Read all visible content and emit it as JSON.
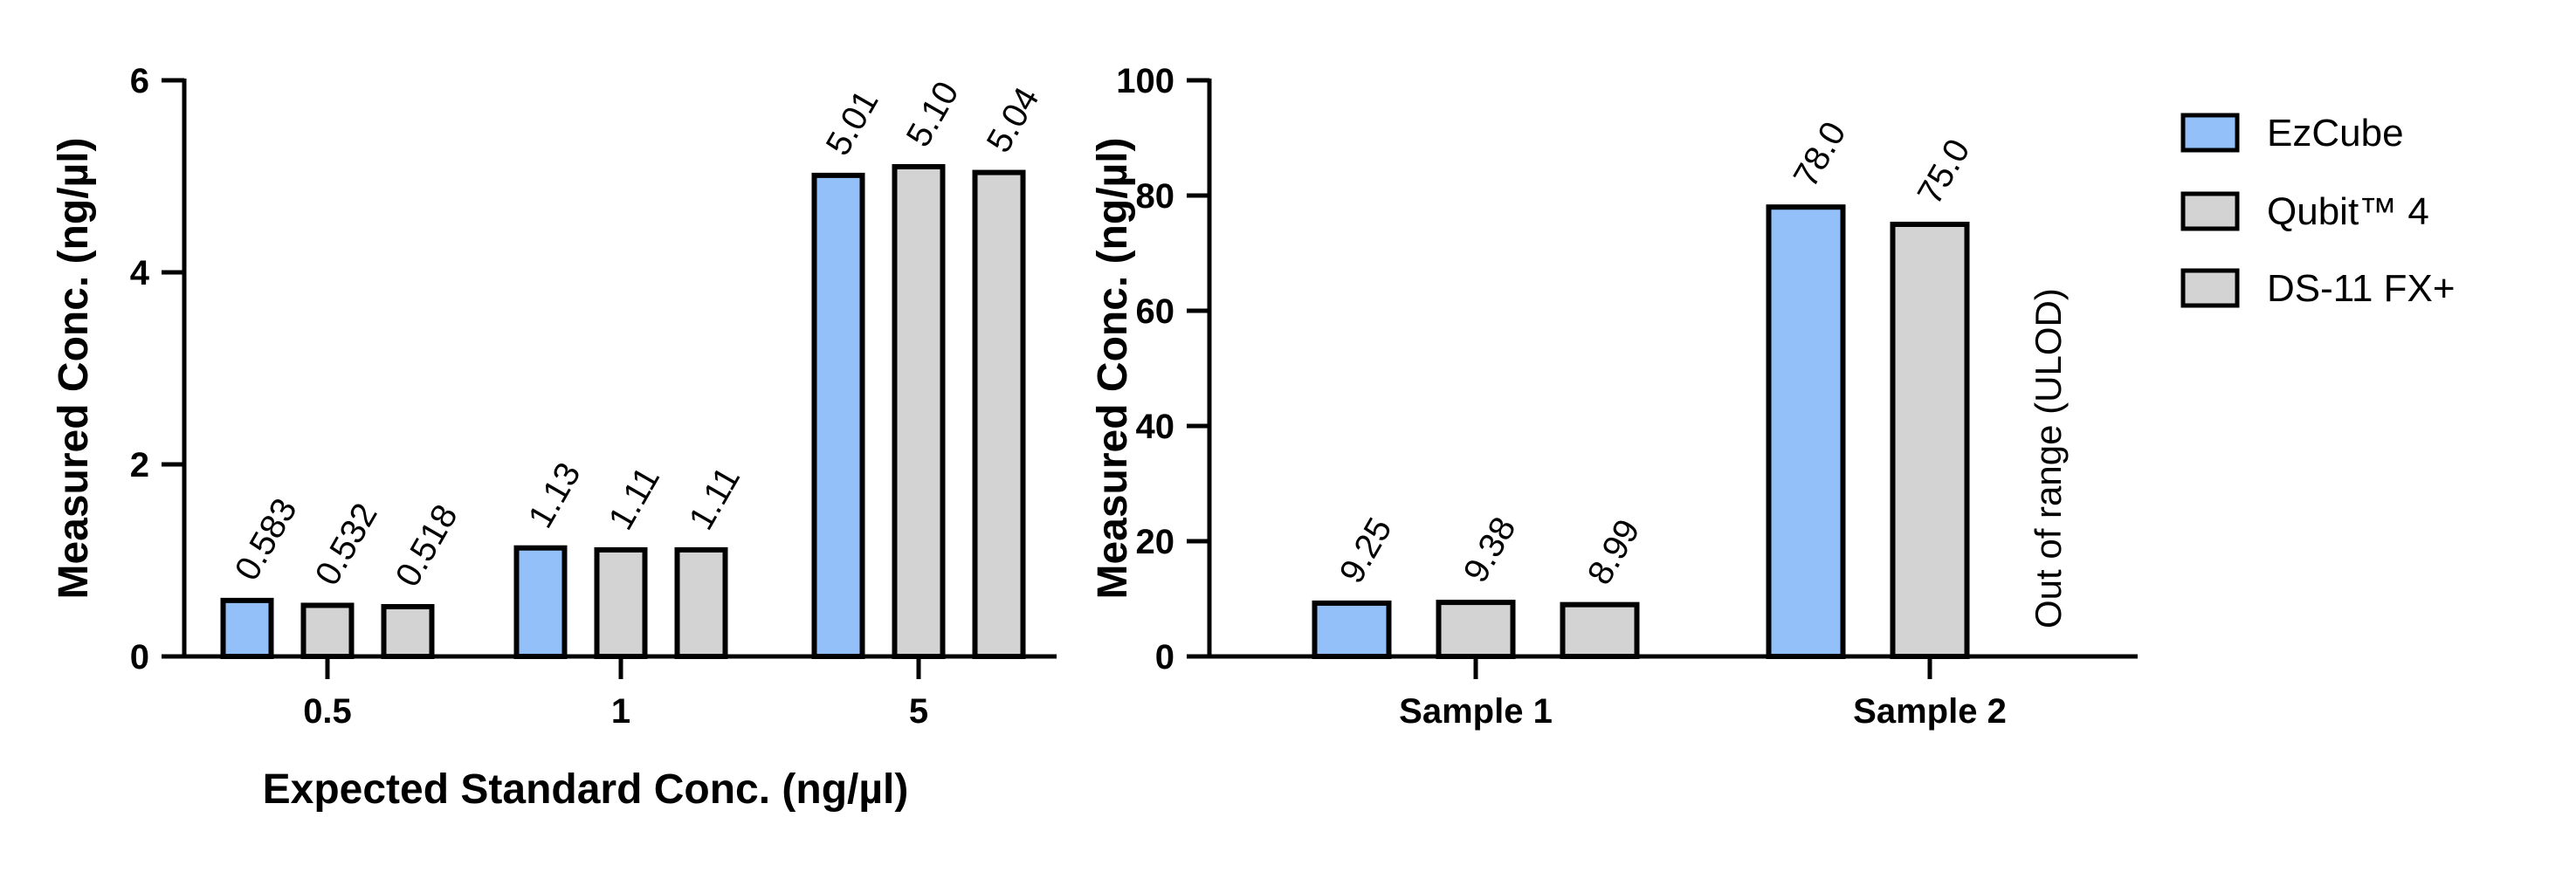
{
  "chart_data": [
    {
      "type": "bar",
      "xlabel": "Expected Standard Conc. (ng/µl)",
      "ylabel": "Measured Conc. (ng/µl)",
      "ylim": [
        0,
        6
      ],
      "yticks": [
        0,
        2,
        4,
        6
      ],
      "categories": [
        "0.5",
        "1",
        "5"
      ],
      "series": [
        {
          "name": "EzCube",
          "values": [
            0.583,
            1.13,
            5.01
          ],
          "labels": [
            "0.583",
            "1.13",
            "5.01"
          ]
        },
        {
          "name": "Qubit™ 4",
          "values": [
            0.532,
            1.11,
            5.1
          ],
          "labels": [
            "0.532",
            "1.11",
            "5.10"
          ]
        },
        {
          "name": "DS-11 FX+",
          "values": [
            0.518,
            1.11,
            5.04
          ],
          "labels": [
            "0.518",
            "1.11",
            "5.04"
          ]
        }
      ],
      "grid": false
    },
    {
      "type": "bar",
      "xlabel": "",
      "ylabel": "Measured Conc. (ng/µl)",
      "ylim": [
        0,
        100
      ],
      "yticks": [
        0,
        20,
        40,
        60,
        80,
        100
      ],
      "categories": [
        "Sample 1",
        "Sample 2"
      ],
      "series": [
        {
          "name": "EzCube",
          "values": [
            9.25,
            78.0
          ],
          "labels": [
            "9.25",
            "78.0"
          ]
        },
        {
          "name": "Qubit™ 4",
          "values": [
            9.38,
            75.0
          ],
          "labels": [
            "9.38",
            "75.0"
          ]
        },
        {
          "name": "DS-11 FX+",
          "values": [
            8.99,
            null
          ],
          "labels": [
            "8.99",
            null
          ]
        }
      ],
      "annotations": [
        "Out of range (ULOD)"
      ],
      "grid": false
    }
  ],
  "legend": {
    "placement": "right",
    "items": [
      {
        "label": "EzCube",
        "color": "#93C0F8"
      },
      {
        "label": "Qubit™ 4",
        "color": "#D3D3D3"
      },
      {
        "label": "DS-11 FX+",
        "color": "#D3D3D3"
      }
    ]
  }
}
